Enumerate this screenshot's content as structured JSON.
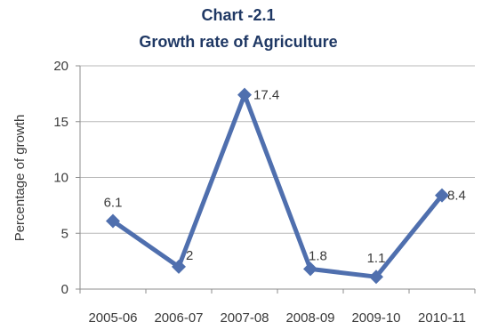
{
  "chart_data": {
    "type": "line",
    "title": "Chart -2.1",
    "subtitle": "Growth rate of Agriculture",
    "xlabel": "",
    "ylabel": "Percentage of growth",
    "categories": [
      "2005-06",
      "2006-07",
      "2007-08",
      "2008-09",
      "2009-10",
      "2010-11"
    ],
    "series": [
      {
        "values": [
          6.1,
          2,
          17.4,
          1.8,
          1.1,
          8.4
        ],
        "labels": [
          "6.1",
          "2",
          "17.4",
          "1.8",
          "1.1",
          "8.4"
        ],
        "color": "#4f6fae",
        "marker": "diamond"
      }
    ],
    "ylim": [
      0,
      20
    ],
    "yticks": [
      "0",
      "5",
      "10",
      "15",
      "20"
    ],
    "grid": true,
    "legend": "none"
  }
}
